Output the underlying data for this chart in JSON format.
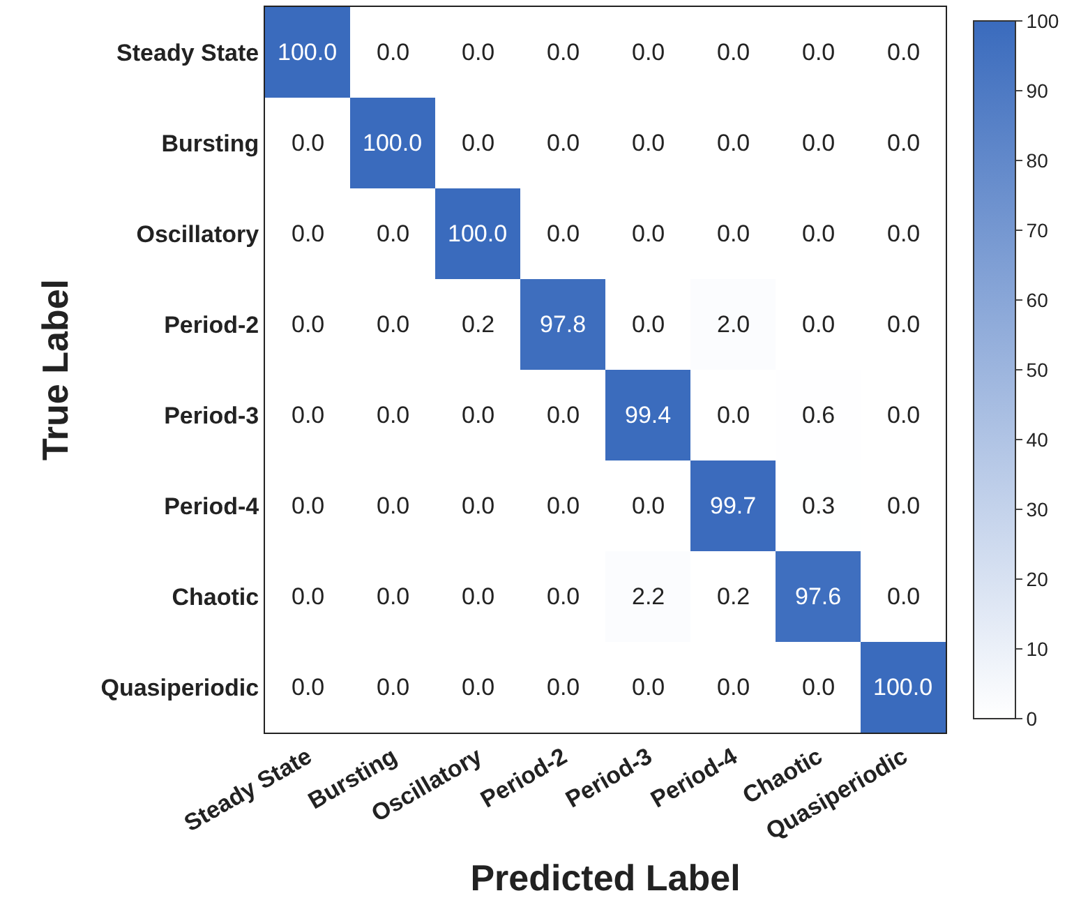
{
  "chart_data": {
    "type": "heatmap",
    "xlabel": "Predicted Label",
    "ylabel": "True Label",
    "categories": [
      "Steady State",
      "Bursting",
      "Oscillatory",
      "Period-2",
      "Period-3",
      "Period-4",
      "Chaotic",
      "Quasiperiodic"
    ],
    "y_categories": [
      "Steady State",
      "Bursting",
      "Oscillatory",
      "Period-2",
      "Period-3",
      "Period-4",
      "Chaotic",
      "Quasiperiodic"
    ],
    "cells": [
      [
        100.0,
        0.0,
        0.0,
        0.0,
        0.0,
        0.0,
        0.0,
        0.0
      ],
      [
        0.0,
        100.0,
        0.0,
        0.0,
        0.0,
        0.0,
        0.0,
        0.0
      ],
      [
        0.0,
        0.0,
        100.0,
        0.0,
        0.0,
        0.0,
        0.0,
        0.0
      ],
      [
        0.0,
        0.0,
        0.2,
        97.8,
        0.0,
        2.0,
        0.0,
        0.0
      ],
      [
        0.0,
        0.0,
        0.0,
        0.0,
        99.4,
        0.0,
        0.6,
        0.0
      ],
      [
        0.0,
        0.0,
        0.0,
        0.0,
        0.0,
        99.7,
        0.3,
        0.0
      ],
      [
        0.0,
        0.0,
        0.0,
        0.0,
        2.2,
        0.2,
        97.6,
        0.0
      ],
      [
        0.0,
        0.0,
        0.0,
        0.0,
        0.0,
        0.0,
        0.0,
        100.0
      ]
    ],
    "cell_labels": [
      [
        "100.0",
        "0.0",
        "0.0",
        "0.0",
        "0.0",
        "0.0",
        "0.0",
        "0.0"
      ],
      [
        "0.0",
        "100.0",
        "0.0",
        "0.0",
        "0.0",
        "0.0",
        "0.0",
        "0.0"
      ],
      [
        "0.0",
        "0.0",
        "100.0",
        "0.0",
        "0.0",
        "0.0",
        "0.0",
        "0.0"
      ],
      [
        "0.0",
        "0.0",
        "0.2",
        "97.8",
        "0.0",
        "2.0",
        "0.0",
        "0.0"
      ],
      [
        "0.0",
        "0.0",
        "0.0",
        "0.0",
        "99.4",
        "0.0",
        "0.6",
        "0.0"
      ],
      [
        "0.0",
        "0.0",
        "0.0",
        "0.0",
        "0.0",
        "99.7",
        "0.3",
        "0.0"
      ],
      [
        "0.0",
        "0.0",
        "0.0",
        "0.0",
        "2.2",
        "0.2",
        "97.6",
        "0.0"
      ],
      [
        "0.0",
        "0.0",
        "0.0",
        "0.0",
        "0.0",
        "0.0",
        "0.0",
        "100.0"
      ]
    ],
    "clim": [
      0,
      100
    ],
    "cticks": [
      0,
      10,
      20,
      30,
      40,
      50,
      60,
      70,
      80,
      90,
      100
    ]
  }
}
